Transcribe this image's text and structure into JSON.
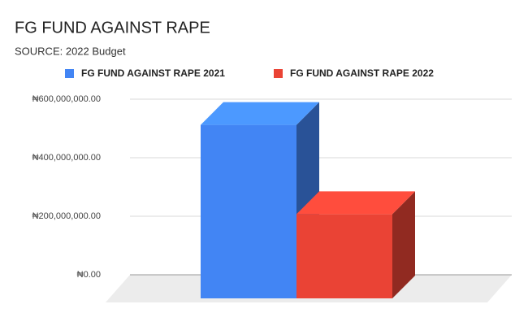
{
  "chart_data": {
    "type": "bar3d",
    "title": "FG FUND AGAINST RAPE",
    "subtitle": "SOURCE: 2022 Budget",
    "categories": [
      null
    ],
    "series": [
      {
        "name": "FG FUND AGAINST RAPE 2021",
        "color": "#4285f4",
        "values": [
          590000000
        ]
      },
      {
        "name": "FG FUND AGAINST RAPE 2022",
        "color": "#ea4335",
        "values": [
          285000000
        ]
      }
    ],
    "ylim": [
      0,
      600000000
    ],
    "yticks": [
      {
        "value": 0,
        "label": "₦0.00"
      },
      {
        "value": 200000000,
        "label": "₦200,000,000.00"
      },
      {
        "value": 400000000,
        "label": "₦400,000,000.00"
      },
      {
        "value": 600000000,
        "label": "₦600,000,000.00"
      }
    ],
    "grid": true,
    "legend": "top"
  }
}
